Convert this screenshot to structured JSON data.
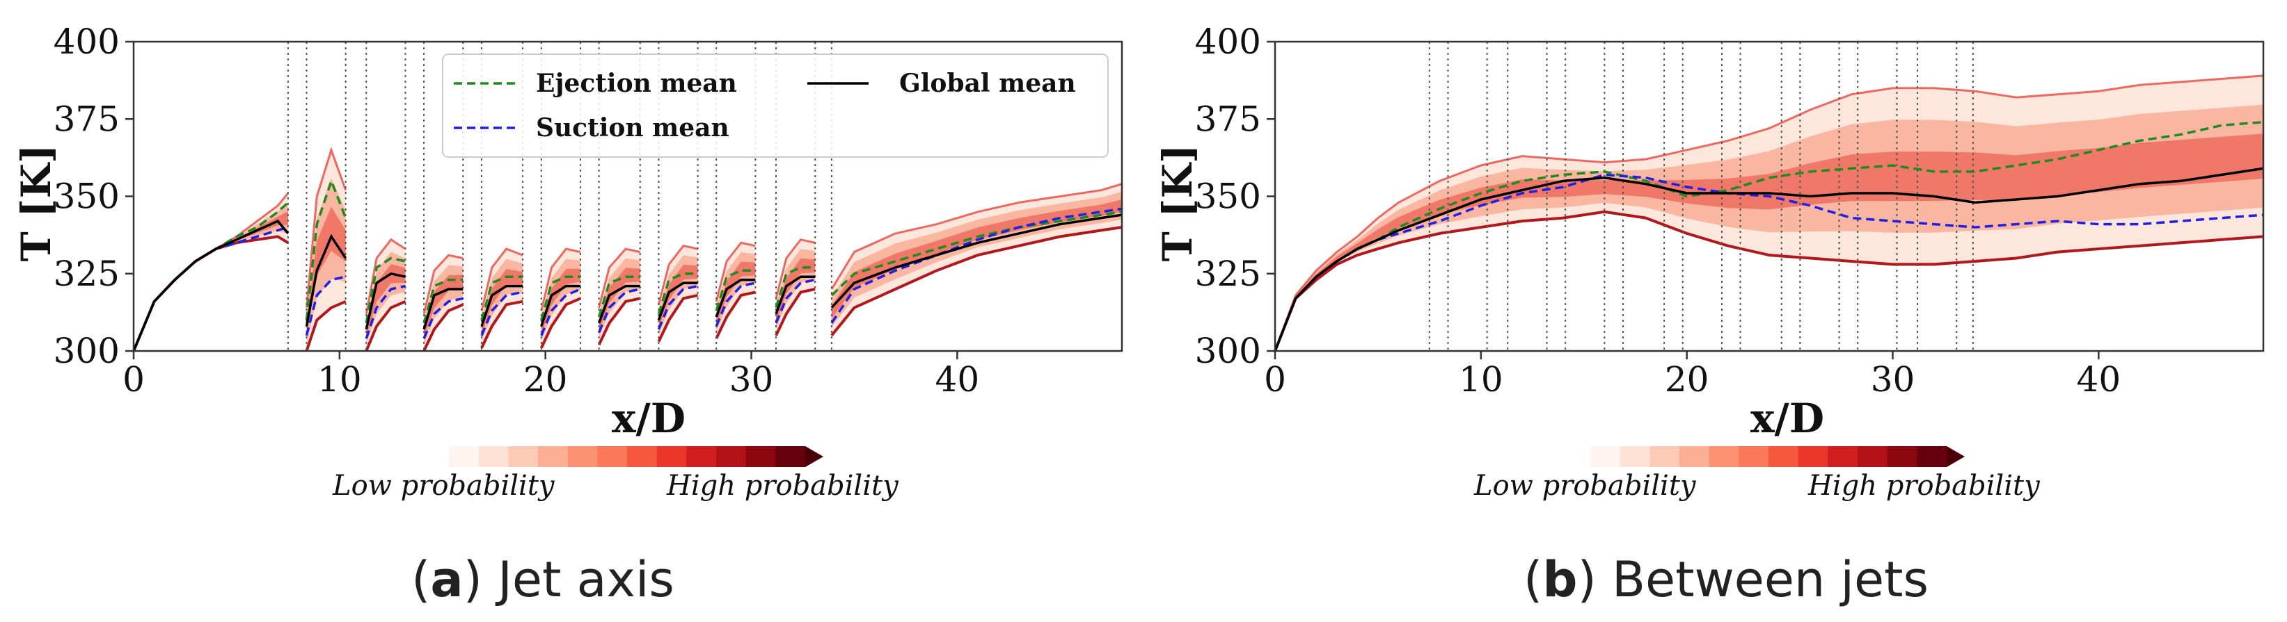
{
  "colors": {
    "ejection": "#1f8a1f",
    "suction": "#1f1fe6",
    "global": "#000000",
    "dark_red": "#b2181b",
    "mid_red": "#e9453c",
    "light_red": "#f7a58e",
    "pale_red": "#fde3d8"
  },
  "colorbar_colors": [
    "#fff5f0",
    "#fee2d5",
    "#fdcab5",
    "#fcaf93",
    "#fc9272",
    "#fb7858",
    "#f6583e",
    "#eb372a",
    "#d11e1f",
    "#b11117",
    "#8b0710",
    "#67000d"
  ],
  "chart_data": [
    {
      "type": "line",
      "panel_label": "a",
      "caption": "Jet axis",
      "xlabel": "x/D",
      "ylabel": "T [K]",
      "xlim": [
        0,
        48
      ],
      "ylim": [
        300,
        400
      ],
      "xticks": [
        "0",
        "10",
        "20",
        "30",
        "40"
      ],
      "yticks": [
        "300",
        "325",
        "350",
        "375",
        "400"
      ],
      "xtick_values": [
        0,
        10,
        20,
        30,
        40
      ],
      "ytick_values": [
        300,
        325,
        350,
        375,
        400
      ],
      "jet_lines_x": [
        7.5,
        8.4,
        10.3,
        11.3,
        13.2,
        14.1,
        16.0,
        16.9,
        18.9,
        19.8,
        21.7,
        22.6,
        24.6,
        25.5,
        27.4,
        28.3,
        30.2,
        31.2,
        33.1,
        33.9
      ],
      "legend": {
        "ejection": "Ejection mean",
        "suction": "Suction mean",
        "global": "Global mean"
      },
      "colorbar": {
        "low": "Low probability",
        "high": "High probability"
      },
      "segments": [
        {
          "x": [
            0,
            1,
            2,
            3,
            4,
            5,
            6,
            7,
            7.5
          ],
          "global": [
            300,
            316,
            323,
            329,
            333,
            336,
            339,
            342,
            338
          ],
          "ejection": [
            300,
            316,
            323,
            329,
            333,
            337,
            340,
            345,
            348
          ],
          "suction": [
            300,
            316,
            323,
            329,
            333,
            335,
            337,
            339,
            340
          ],
          "low": [
            300,
            316,
            323,
            329,
            333,
            335,
            336,
            337,
            335
          ],
          "high": [
            300,
            316,
            323,
            329,
            333,
            337,
            342,
            347,
            351
          ]
        },
        {
          "x": [
            8.4,
            8.9,
            9.6,
            10.3
          ],
          "global": [
            308,
            326,
            337,
            330
          ],
          "ejection": [
            310,
            341,
            355,
            343
          ],
          "suction": [
            305,
            318,
            323,
            324
          ],
          "low": [
            300,
            310,
            314,
            316
          ],
          "high": [
            314,
            350,
            365,
            352
          ]
        },
        {
          "x": [
            11.3,
            11.8,
            12.5,
            13.2
          ],
          "global": [
            307,
            322,
            325,
            324
          ],
          "ejection": [
            309,
            327,
            330,
            329
          ],
          "suction": [
            304,
            314,
            320,
            321
          ],
          "low": [
            300,
            308,
            314,
            316
          ],
          "high": [
            312,
            330,
            336,
            333
          ]
        },
        {
          "x": [
            14.1,
            14.6,
            15.3,
            16.0
          ],
          "global": [
            307,
            318,
            320,
            320
          ],
          "ejection": [
            309,
            321,
            323,
            323
          ],
          "suction": [
            304,
            312,
            316,
            317
          ],
          "low": [
            300,
            307,
            313,
            315
          ],
          "high": [
            312,
            326,
            331,
            330
          ]
        },
        {
          "x": [
            16.9,
            17.4,
            18.1,
            18.9
          ],
          "global": [
            308,
            318,
            321,
            321
          ],
          "ejection": [
            310,
            322,
            324,
            324
          ],
          "suction": [
            305,
            313,
            318,
            319
          ],
          "low": [
            301,
            308,
            315,
            316
          ],
          "high": [
            313,
            327,
            333,
            331
          ]
        },
        {
          "x": [
            19.8,
            20.3,
            21.0,
            21.7
          ],
          "global": [
            308,
            318,
            321,
            321
          ],
          "ejection": [
            310,
            322,
            324,
            324
          ],
          "suction": [
            305,
            313,
            318,
            320
          ],
          "low": [
            301,
            308,
            315,
            317
          ],
          "high": [
            313,
            327,
            333,
            332
          ]
        },
        {
          "x": [
            22.6,
            23.1,
            23.9,
            24.6
          ],
          "global": [
            309,
            318,
            321,
            321
          ],
          "ejection": [
            311,
            322,
            324,
            324
          ],
          "suction": [
            306,
            314,
            319,
            320
          ],
          "low": [
            302,
            309,
            316,
            317
          ],
          "high": [
            314,
            327,
            333,
            332
          ]
        },
        {
          "x": [
            25.5,
            26.0,
            26.7,
            27.4
          ],
          "global": [
            310,
            319,
            322,
            322
          ],
          "ejection": [
            312,
            323,
            325,
            325
          ],
          "suction": [
            307,
            315,
            320,
            321
          ],
          "low": [
            303,
            310,
            317,
            318
          ],
          "high": [
            315,
            328,
            334,
            333
          ]
        },
        {
          "x": [
            28.3,
            28.8,
            29.5,
            30.2
          ],
          "global": [
            311,
            320,
            323,
            323
          ],
          "ejection": [
            313,
            324,
            326,
            326
          ],
          "suction": [
            308,
            316,
            321,
            322
          ],
          "low": [
            304,
            311,
            318,
            319
          ],
          "high": [
            316,
            329,
            335,
            334
          ]
        },
        {
          "x": [
            31.2,
            31.7,
            32.4,
            33.1
          ],
          "global": [
            312,
            321,
            324,
            324
          ],
          "ejection": [
            314,
            325,
            327,
            327
          ],
          "suction": [
            309,
            317,
            322,
            323
          ],
          "low": [
            305,
            312,
            319,
            320
          ],
          "high": [
            317,
            330,
            336,
            335
          ]
        },
        {
          "x": [
            33.9,
            35,
            37,
            39,
            41,
            43,
            45,
            47,
            48
          ],
          "global": [
            314,
            322,
            327,
            331,
            335,
            338,
            341,
            343,
            344
          ],
          "ejection": [
            318,
            325,
            329,
            333,
            337,
            340,
            342,
            344,
            345
          ],
          "suction": [
            309,
            320,
            326,
            331,
            336,
            340,
            343,
            345,
            346
          ],
          "low": [
            305,
            314,
            320,
            326,
            331,
            334,
            337,
            339,
            340
          ],
          "high": [
            320,
            332,
            338,
            341,
            345,
            348,
            350,
            352,
            354
          ]
        }
      ]
    },
    {
      "type": "line",
      "panel_label": "b",
      "caption": "Between jets",
      "xlabel": "x/D",
      "ylabel": "T [K]",
      "xlim": [
        0,
        48
      ],
      "ylim": [
        300,
        400
      ],
      "xticks": [
        "0",
        "10",
        "20",
        "30",
        "40"
      ],
      "yticks": [
        "300",
        "325",
        "350",
        "375",
        "400"
      ],
      "xtick_values": [
        0,
        10,
        20,
        30,
        40
      ],
      "ytick_values": [
        300,
        325,
        350,
        375,
        400
      ],
      "jet_lines_x": [
        7.5,
        8.4,
        10.3,
        11.3,
        13.2,
        14.1,
        16.0,
        16.9,
        18.9,
        19.8,
        21.7,
        22.6,
        24.6,
        25.5,
        27.4,
        28.3,
        30.2,
        31.2,
        33.1,
        33.9
      ],
      "colorbar": {
        "low": "Low probability",
        "high": "High probability"
      },
      "segments": [
        {
          "x": [
            0,
            1,
            2,
            3,
            4,
            5,
            6,
            8,
            10,
            12,
            14,
            16,
            18,
            20,
            22,
            24,
            26,
            28,
            30,
            32,
            34,
            36,
            38,
            40,
            42,
            44,
            46,
            48
          ],
          "global": [
            300,
            317,
            324,
            329,
            333,
            336,
            339,
            344,
            349,
            352,
            355,
            356,
            354,
            351,
            351,
            351,
            350,
            351,
            351,
            350,
            348,
            349,
            350,
            352,
            354,
            355,
            357,
            359
          ],
          "ejection": [
            300,
            317,
            324,
            329,
            333,
            336,
            340,
            346,
            351,
            355,
            357,
            358,
            355,
            350,
            352,
            356,
            358,
            359,
            360,
            358,
            358,
            360,
            362,
            365,
            368,
            370,
            373,
            374
          ],
          "suction": [
            300,
            317,
            324,
            329,
            333,
            336,
            338,
            342,
            347,
            351,
            353,
            357,
            356,
            353,
            351,
            350,
            347,
            343,
            342,
            341,
            340,
            341,
            342,
            341,
            341,
            342,
            343,
            344
          ],
          "low": [
            300,
            317,
            323,
            328,
            331,
            333,
            335,
            338,
            340,
            342,
            343,
            345,
            343,
            338,
            334,
            331,
            330,
            329,
            328,
            328,
            329,
            330,
            332,
            333,
            334,
            335,
            336,
            337
          ],
          "high": [
            300,
            318,
            326,
            332,
            337,
            343,
            348,
            355,
            360,
            363,
            362,
            361,
            362,
            365,
            368,
            372,
            378,
            383,
            385,
            385,
            384,
            382,
            383,
            384,
            386,
            387,
            388,
            389
          ]
        }
      ]
    }
  ]
}
